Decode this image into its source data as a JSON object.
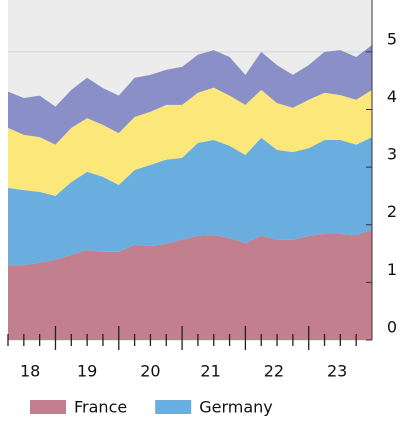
{
  "chart_data": {
    "type": "stacked-area",
    "x": [
      18.25,
      18.5,
      18.75,
      19.0,
      19.25,
      19.5,
      19.75,
      20.0,
      20.25,
      20.5,
      20.75,
      21.0,
      21.25,
      21.5,
      21.75,
      22.0,
      22.25,
      22.5,
      22.75,
      23.0,
      23.25,
      23.5,
      23.75,
      24.0
    ],
    "series": [
      {
        "name": "France",
        "color": "#c27f8d",
        "values": [
          1.3,
          1.3,
          1.34,
          1.39,
          1.48,
          1.56,
          1.53,
          1.53,
          1.65,
          1.63,
          1.67,
          1.74,
          1.81,
          1.82,
          1.77,
          1.68,
          1.81,
          1.74,
          1.74,
          1.81,
          1.84,
          1.84,
          1.82,
          1.91
        ]
      },
      {
        "name": "Germany",
        "color": "#6aaedf",
        "values": [
          1.34,
          1.3,
          1.23,
          1.11,
          1.26,
          1.36,
          1.3,
          1.16,
          1.3,
          1.41,
          1.46,
          1.42,
          1.61,
          1.65,
          1.6,
          1.53,
          1.7,
          1.56,
          1.52,
          1.52,
          1.63,
          1.63,
          1.57,
          1.61
        ]
      },
      {
        "color": "#fce87a",
        "values": [
          1.04,
          0.96,
          0.95,
          0.89,
          0.94,
          0.93,
          0.9,
          0.9,
          0.92,
          0.92,
          0.95,
          0.92,
          0.87,
          0.91,
          0.87,
          0.87,
          0.83,
          0.81,
          0.77,
          0.84,
          0.82,
          0.78,
          0.78,
          0.82
        ]
      },
      {
        "color": "#8b8fc8",
        "values": [
          0.63,
          0.64,
          0.72,
          0.66,
          0.66,
          0.7,
          0.64,
          0.65,
          0.68,
          0.64,
          0.61,
          0.66,
          0.66,
          0.65,
          0.67,
          0.52,
          0.66,
          0.66,
          0.57,
          0.6,
          0.71,
          0.78,
          0.74,
          0.78
        ]
      }
    ],
    "xlim": [
      18.25,
      24.0
    ],
    "xticks": [
      {
        "value": 18.6,
        "label": "18"
      },
      {
        "value": 19.5,
        "label": "19"
      },
      {
        "value": 20.5,
        "label": "20"
      },
      {
        "value": 21.45,
        "label": "21"
      },
      {
        "value": 22.45,
        "label": "22"
      },
      {
        "value": 23.45,
        "label": "23"
      }
    ],
    "xmajorticks": [
      19,
      20,
      21,
      22,
      23
    ],
    "xminorticks": [
      18.25,
      18.5,
      18.75,
      19.25,
      19.5,
      19.75,
      20.25,
      20.5,
      20.75,
      21.25,
      21.5,
      21.75,
      22.25,
      22.5,
      22.75,
      23.25,
      23.5,
      23.75
    ],
    "ylim": [
      0,
      5.9
    ],
    "yticks": [
      0,
      1,
      2,
      3,
      4,
      5
    ],
    "grid": true,
    "yaxis": "right"
  }
}
